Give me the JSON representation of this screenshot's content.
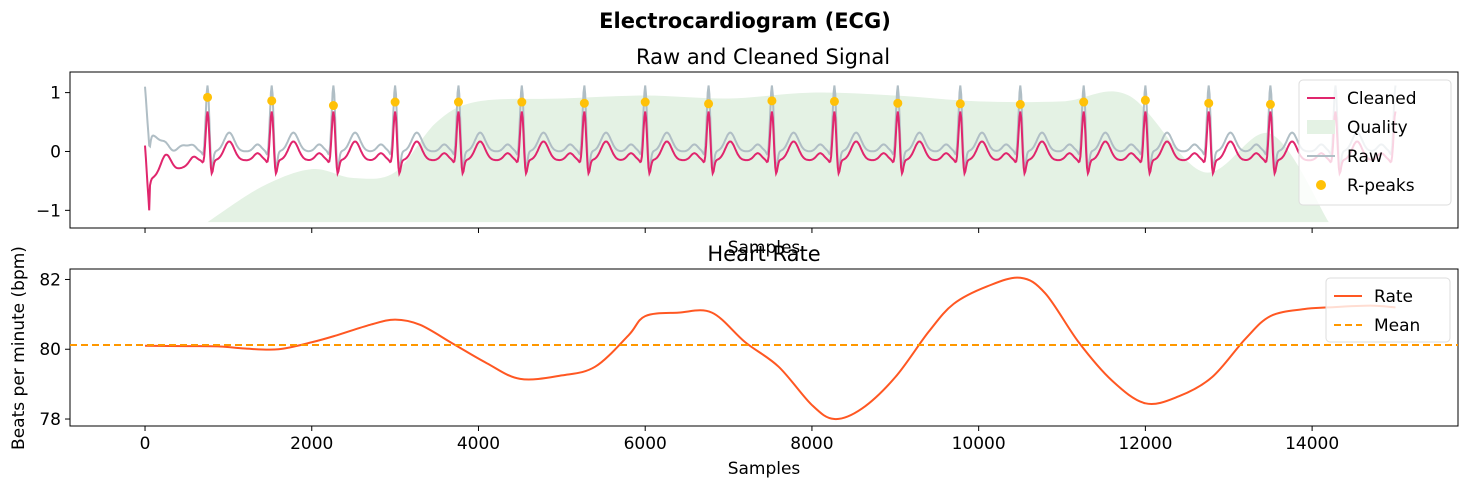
{
  "figure": {
    "suptitle": "Electrocardiogram (ECG)"
  },
  "colors": {
    "cleaned": "#e0266d",
    "raw": "#b0bec5",
    "quality": "#e4f2e4",
    "rpeaks": "#ffc107",
    "rate": "#ff5722",
    "mean": "#ff9800"
  },
  "chart_data": [
    {
      "type": "line",
      "title": "Raw and Cleaned Signal",
      "xlabel": "Samples",
      "ylabel": "",
      "xlim": [
        -900,
        15750
      ],
      "ylim": [
        -1.3,
        1.35
      ],
      "y_ticks": [
        -1,
        0,
        1
      ],
      "y_tick_labels": [
        "−1",
        "0",
        "1"
      ],
      "x_ticks": [
        0,
        2000,
        4000,
        6000,
        8000,
        10000,
        12000,
        14000
      ],
      "x_tick_labels_shown": false,
      "grid": false,
      "legend_position": "top-right",
      "legend": [
        "Cleaned",
        "Quality",
        "Raw",
        "R-peaks"
      ],
      "series": [
        {
          "name": "Cleaned",
          "kind": "ecg",
          "x_start": 0,
          "x_end": 15000,
          "r_peak_amplitude": 0.85,
          "baseline": -0.15
        },
        {
          "name": "Raw",
          "kind": "ecg",
          "x_start": 0,
          "x_end": 15000,
          "r_peak_amplitude": 1.15,
          "baseline": 0.0
        },
        {
          "name": "Quality",
          "kind": "area",
          "floor": -1.2,
          "x": [
            750,
            1400,
            2000,
            2500,
            3000,
            3500,
            4000,
            5000,
            6000,
            7000,
            8000,
            9000,
            10000,
            11000,
            11800,
            12700,
            13500,
            14200
          ],
          "y": [
            -1.2,
            -0.6,
            -0.3,
            -0.45,
            -0.35,
            0.5,
            0.85,
            0.9,
            0.95,
            0.9,
            1.0,
            0.95,
            0.85,
            0.85,
            0.95,
            -0.35,
            0.3,
            -1.2
          ]
        },
        {
          "name": "R-peaks",
          "kind": "scatter",
          "x": [
            750,
            1520,
            2260,
            3000,
            3760,
            4520,
            5270,
            6000,
            6760,
            7520,
            8270,
            9030,
            9780,
            10500,
            11260,
            12000,
            12760,
            13500
          ],
          "y": [
            0.92,
            0.86,
            0.78,
            0.84,
            0.84,
            0.84,
            0.82,
            0.84,
            0.81,
            0.86,
            0.85,
            0.82,
            0.81,
            0.8,
            0.84,
            0.87,
            0.82,
            0.8
          ]
        }
      ]
    },
    {
      "type": "line",
      "title": "Heart Rate",
      "xlabel": "Samples",
      "ylabel": "Beats per minute (bpm)",
      "xlim": [
        -900,
        15750
      ],
      "ylim": [
        77.8,
        82.3
      ],
      "y_ticks": [
        78,
        80,
        82
      ],
      "x_ticks": [
        0,
        2000,
        4000,
        6000,
        8000,
        10000,
        12000,
        14000
      ],
      "grid": false,
      "legend_position": "top-right",
      "legend": [
        "Rate",
        "Mean"
      ],
      "series": [
        {
          "name": "Rate",
          "x": [
            0,
            500,
            900,
            1200,
            1600,
            2000,
            2300,
            2700,
            3000,
            3300,
            3700,
            4100,
            4500,
            5000,
            5400,
            5800,
            6000,
            6400,
            6800,
            7200,
            7600,
            8000,
            8270,
            8600,
            9000,
            9400,
            9700,
            10100,
            10500,
            10800,
            11200,
            11600,
            12000,
            12400,
            12800,
            13200,
            13500,
            13900,
            14200,
            14700,
            15000
          ],
          "y": [
            80.1,
            80.09,
            80.08,
            80.02,
            80.0,
            80.2,
            80.4,
            80.7,
            80.85,
            80.7,
            80.15,
            79.6,
            79.15,
            79.25,
            79.5,
            80.4,
            80.95,
            81.05,
            81.05,
            80.2,
            79.5,
            78.4,
            78.0,
            78.3,
            79.2,
            80.5,
            81.3,
            81.8,
            82.05,
            81.6,
            80.2,
            79.1,
            78.45,
            78.65,
            79.2,
            80.3,
            80.95,
            81.15,
            81.2,
            81.25,
            81.2
          ]
        },
        {
          "name": "Mean",
          "value": 80.12,
          "style": "dashed"
        }
      ]
    }
  ]
}
